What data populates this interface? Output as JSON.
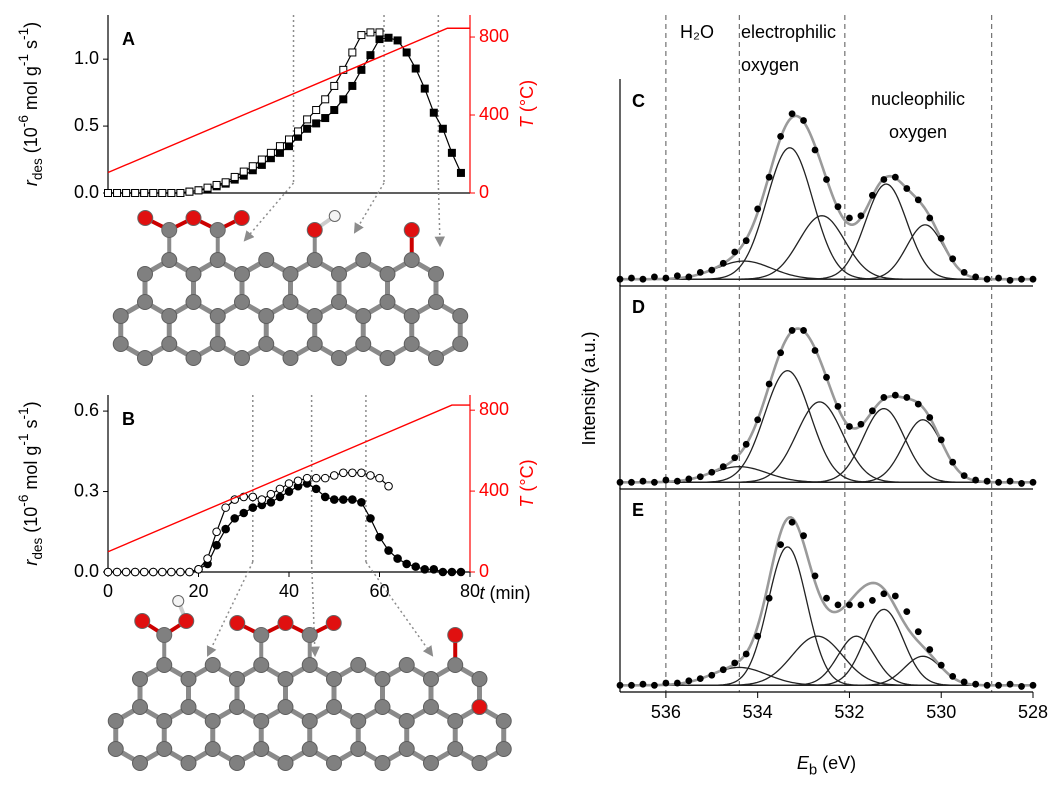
{
  "chart_data": [
    {
      "type": "line",
      "panel": "A",
      "xlim": [
        0,
        80
      ],
      "ylim": [
        0,
        1.33
      ],
      "yticks": [
        {
          "value": 0,
          "label": "0.0"
        },
        {
          "value": 0.5,
          "label": "0.5"
        },
        {
          "value": 1,
          "label": "1.0"
        }
      ],
      "y2lim": [
        0,
        913
      ],
      "y2ticks": [
        0,
        400,
        800
      ],
      "ylabel": [
        {
          "text": "r",
          "style": "italic"
        },
        {
          "text": "des",
          "style": "sub"
        },
        {
          "text": " (10"
        },
        {
          "text": "-6",
          "style": "sup"
        },
        {
          "text": " mol g"
        },
        {
          "text": "-1",
          "style": "sup"
        },
        {
          "text": " s"
        },
        {
          "text": "-1",
          "style": "sup"
        },
        {
          "text": ")"
        }
      ],
      "y2label": [
        {
          "text": "T",
          "style": "italic"
        },
        {
          "text": " (°C)"
        }
      ],
      "annotation_times": [
        41,
        61,
        73
      ],
      "x": [
        0,
        2,
        4,
        6,
        8,
        10,
        12,
        14,
        16,
        18,
        20,
        22,
        24,
        26,
        28,
        30,
        32,
        34,
        36,
        38,
        40,
        42,
        44,
        46,
        48,
        50,
        52,
        54,
        56,
        58,
        60,
        62,
        64,
        66,
        68,
        70,
        72,
        74,
        76,
        78
      ],
      "series": [
        {
          "marker": "square",
          "filled": true,
          "color": "#000000",
          "values": [
            0,
            0,
            0,
            0,
            0,
            0,
            0,
            0,
            0,
            0.01,
            0.02,
            0.03,
            0.05,
            0.07,
            0.1,
            0.13,
            0.17,
            0.21,
            0.26,
            0.3,
            0.35,
            0.42,
            0.48,
            0.52,
            0.56,
            0.62,
            0.7,
            0.8,
            0.92,
            1.03,
            1.15,
            1.16,
            1.14,
            1.05,
            0.93,
            0.78,
            0.6,
            0.48,
            0.3,
            0.15
          ]
        },
        {
          "marker": "square",
          "filled": false,
          "color": "#000000",
          "values": [
            0,
            0,
            0,
            0,
            0,
            0,
            0,
            0,
            0,
            0.01,
            0.02,
            0.04,
            0.06,
            0.08,
            0.12,
            0.16,
            0.2,
            0.25,
            0.3,
            0.35,
            0.4,
            0.46,
            0.55,
            0.62,
            0.7,
            0.8,
            0.92,
            1.05,
            1.18,
            1.2,
            1.2,
            null,
            null,
            null,
            null,
            null,
            null,
            null,
            null,
            null
          ]
        },
        {
          "axis": "y2",
          "color": "#ff0000",
          "x": [
            0,
            75,
            80
          ],
          "values": [
            105,
            845,
            845
          ]
        }
      ]
    },
    {
      "type": "line",
      "panel": "B",
      "xlim": [
        0,
        80
      ],
      "ylim": [
        0,
        0.66
      ],
      "xticks": [
        0,
        20,
        40,
        60,
        80
      ],
      "yticks": [
        {
          "value": 0,
          "label": "0.0"
        },
        {
          "value": 0.3,
          "label": "0.3"
        },
        {
          "value": 0.6,
          "label": "0.6"
        }
      ],
      "y2lim": [
        0,
        875
      ],
      "y2ticks": [
        0,
        400,
        800
      ],
      "ylabel": [
        {
          "text": "r",
          "style": "italic"
        },
        {
          "text": "des",
          "style": "sub"
        },
        {
          "text": " (10"
        },
        {
          "text": "-6",
          "style": "sup"
        },
        {
          "text": " mol g"
        },
        {
          "text": "-1",
          "style": "sup"
        },
        {
          "text": " s"
        },
        {
          "text": "-1",
          "style": "sup"
        },
        {
          "text": ")"
        }
      ],
      "y2label": [
        {
          "text": "T",
          "style": "italic"
        },
        {
          "text": " (°C)"
        }
      ],
      "xlabel": [
        {
          "text": "t",
          "style": "italic"
        },
        {
          "text": " (min)"
        }
      ],
      "annotation_times": [
        32,
        45,
        57
      ],
      "x": [
        0,
        2,
        4,
        6,
        8,
        10,
        12,
        14,
        16,
        18,
        20,
        22,
        24,
        26,
        28,
        30,
        32,
        34,
        36,
        38,
        40,
        42,
        44,
        46,
        48,
        50,
        52,
        54,
        56,
        58,
        60,
        62,
        64,
        66,
        68,
        70,
        72,
        74,
        76,
        78
      ],
      "series": [
        {
          "marker": "circle",
          "filled": true,
          "color": "#000000",
          "values": [
            0,
            0,
            0,
            0,
            0,
            0,
            0,
            0,
            0,
            0,
            0.01,
            0.03,
            0.1,
            0.16,
            0.2,
            0.22,
            0.24,
            0.25,
            0.26,
            0.28,
            0.3,
            0.32,
            0.33,
            0.31,
            0.28,
            0.27,
            0.27,
            0.27,
            0.26,
            0.2,
            0.13,
            0.08,
            0.05,
            0.03,
            0.02,
            0.01,
            0.01,
            0,
            0,
            0
          ]
        },
        {
          "marker": "circle",
          "filled": false,
          "color": "#000000",
          "values": [
            0,
            0,
            0,
            0,
            0,
            0,
            0,
            0,
            0,
            0,
            0.01,
            0.05,
            0.15,
            0.24,
            0.27,
            0.28,
            0.28,
            0.27,
            0.29,
            0.31,
            0.33,
            0.34,
            0.35,
            0.35,
            0.35,
            0.36,
            0.37,
            0.37,
            0.37,
            0.36,
            0.35,
            0.32,
            null,
            null,
            null,
            null,
            null,
            null,
            null,
            null
          ]
        },
        {
          "axis": "y2",
          "color": "#ff0000",
          "x": [
            0,
            76,
            80
          ],
          "values": [
            100,
            825,
            825
          ]
        }
      ]
    },
    {
      "type": "spectrum",
      "panel": "C",
      "xlim": [
        537,
        528
      ],
      "ylim": [
        0,
        0.9
      ],
      "background": 0.03,
      "reference_lines": [
        536,
        534.4,
        532.1,
        528.9
      ],
      "region_labels": [
        [
          "H₂O"
        ],
        [
          "electrophilic",
          "oxygen"
        ],
        [
          "nucleophilic",
          "oxygen"
        ]
      ],
      "x": [
        537,
        536.75,
        536.5,
        536.25,
        536,
        535.75,
        535.5,
        535.25,
        535,
        534.75,
        534.5,
        534.25,
        534,
        533.75,
        533.5,
        533.25,
        533,
        532.75,
        532.5,
        532.25,
        532,
        531.75,
        531.5,
        531.25,
        531,
        530.75,
        530.5,
        530.25,
        530,
        529.75,
        529.5,
        529.25,
        529,
        528.75,
        528.5,
        528.25,
        528
      ],
      "points": [
        0.03,
        0.035,
        0.03,
        0.04,
        0.035,
        0.045,
        0.04,
        0.06,
        0.07,
        0.1,
        0.15,
        0.2,
        0.34,
        0.48,
        0.66,
        0.76,
        0.73,
        0.6,
        0.47,
        0.35,
        0.3,
        0.31,
        0.4,
        0.47,
        0.48,
        0.43,
        0.38,
        0.3,
        0.21,
        0.12,
        0.06,
        0.04,
        0.03,
        0.035,
        0.025,
        0.03,
        0.03
      ],
      "components": [
        {
          "center": 534.3,
          "height": 0.08,
          "sigma": 0.6
        },
        {
          "center": 533.3,
          "height": 0.58,
          "sigma": 0.5
        },
        {
          "center": 532.6,
          "height": 0.28,
          "sigma": 0.5
        },
        {
          "center": 531.2,
          "height": 0.42,
          "sigma": 0.45
        },
        {
          "center": 530.35,
          "height": 0.24,
          "sigma": 0.4
        }
      ]
    },
    {
      "type": "spectrum",
      "panel": "D",
      "xlim": [
        537,
        528
      ],
      "ylim": [
        0,
        0.9
      ],
      "background": 0.03,
      "ylabel": "Intensity (a.u.)",
      "x": [
        537,
        536.75,
        536.5,
        536.25,
        536,
        535.75,
        535.5,
        535.25,
        535,
        534.75,
        534.5,
        534.25,
        534,
        533.75,
        533.5,
        533.25,
        533,
        532.75,
        532.5,
        532.25,
        532,
        531.75,
        531.5,
        531.25,
        531,
        530.75,
        530.5,
        530.25,
        530,
        529.75,
        529.5,
        529.25,
        529,
        528.75,
        528.5,
        528.25,
        528
      ],
      "points": [
        0.03,
        0.03,
        0.035,
        0.03,
        0.04,
        0.035,
        0.045,
        0.055,
        0.075,
        0.1,
        0.14,
        0.2,
        0.31,
        0.47,
        0.61,
        0.71,
        0.71,
        0.62,
        0.5,
        0.37,
        0.28,
        0.29,
        0.35,
        0.41,
        0.42,
        0.41,
        0.38,
        0.32,
        0.22,
        0.12,
        0.06,
        0.04,
        0.035,
        0.03,
        0.035,
        0.025,
        0.03
      ],
      "components": [
        {
          "center": 534.4,
          "height": 0.07,
          "sigma": 0.6
        },
        {
          "center": 533.35,
          "height": 0.5,
          "sigma": 0.5
        },
        {
          "center": 532.65,
          "height": 0.36,
          "sigma": 0.5
        },
        {
          "center": 531.25,
          "height": 0.33,
          "sigma": 0.45
        },
        {
          "center": 530.4,
          "height": 0.28,
          "sigma": 0.42
        }
      ]
    },
    {
      "type": "spectrum",
      "panel": "E",
      "xlim": [
        537,
        528
      ],
      "ylim": [
        0,
        0.9
      ],
      "background": 0.03,
      "xticks": [
        536,
        534,
        532,
        530,
        528
      ],
      "xlabel": [
        {
          "text": "E",
          "style": "italic"
        },
        {
          "text": "b",
          "style": "sub"
        },
        {
          "text": " (eV)"
        }
      ],
      "x": [
        537,
        536.75,
        536.5,
        536.25,
        536,
        535.75,
        535.5,
        535.25,
        535,
        534.75,
        534.5,
        534.25,
        534,
        533.75,
        533.5,
        533.25,
        533,
        532.75,
        532.5,
        532.25,
        532,
        531.75,
        531.5,
        531.25,
        531,
        530.75,
        530.5,
        530.25,
        530,
        529.75,
        529.5,
        529.25,
        529,
        528.75,
        528.5,
        528.25,
        528
      ],
      "points": [
        0.03,
        0.03,
        0.035,
        0.03,
        0.04,
        0.04,
        0.05,
        0.06,
        0.075,
        0.1,
        0.13,
        0.17,
        0.25,
        0.42,
        0.66,
        0.76,
        0.7,
        0.52,
        0.42,
        0.39,
        0.39,
        0.39,
        0.41,
        0.44,
        0.43,
        0.36,
        0.27,
        0.19,
        0.12,
        0.07,
        0.045,
        0.035,
        0.03,
        0.03,
        0.035,
        0.025,
        0.03
      ],
      "components": [
        {
          "center": 534.4,
          "height": 0.08,
          "sigma": 0.6
        },
        {
          "center": 533.35,
          "height": 0.62,
          "sigma": 0.42
        },
        {
          "center": 532.7,
          "height": 0.22,
          "sigma": 0.55
        },
        {
          "center": 531.85,
          "height": 0.22,
          "sigma": 0.4
        },
        {
          "center": 531.25,
          "height": 0.34,
          "sigma": 0.42
        },
        {
          "center": 530.4,
          "height": 0.13,
          "sigma": 0.4
        }
      ]
    }
  ]
}
